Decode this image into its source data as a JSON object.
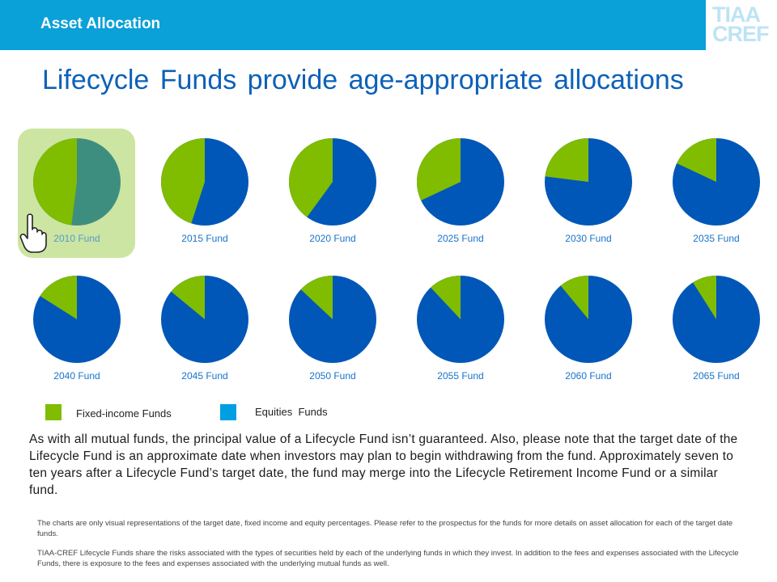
{
  "header": {
    "section_title": "Asset Allocation",
    "logo_lines": [
      "TIAA",
      "CREF"
    ],
    "bar_color": "#0aa0d8"
  },
  "page_title": "Lifecycle Funds provide age-appropriate allocations",
  "colors": {
    "fixed_income": "#80bc00",
    "equities": "#0057b8",
    "selected_equities": "#3e8e7f",
    "highlight": "#cde5a2"
  },
  "funds": [
    {
      "label": "2010 Fund",
      "fixed_income_pct": 48,
      "selected": true
    },
    {
      "label": "2015 Fund",
      "fixed_income_pct": 45,
      "selected": false
    },
    {
      "label": "2020 Fund",
      "fixed_income_pct": 40,
      "selected": false
    },
    {
      "label": "2025 Fund",
      "fixed_income_pct": 32,
      "selected": false
    },
    {
      "label": "2030 Fund",
      "fixed_income_pct": 23,
      "selected": false
    },
    {
      "label": "2035 Fund",
      "fixed_income_pct": 18,
      "selected": false
    },
    {
      "label": "2040 Fund",
      "fixed_income_pct": 16,
      "selected": false
    },
    {
      "label": "2045 Fund",
      "fixed_income_pct": 14,
      "selected": false
    },
    {
      "label": "2050 Fund",
      "fixed_income_pct": 13,
      "selected": false
    },
    {
      "label": "2055 Fund",
      "fixed_income_pct": 12,
      "selected": false
    },
    {
      "label": "2060 Fund",
      "fixed_income_pct": 11,
      "selected": false
    },
    {
      "label": "2065 Fund",
      "fixed_income_pct": 9,
      "selected": false
    }
  ],
  "legend": {
    "fixed_income_label": "Fixed-income Funds",
    "equities_label": "Equities  Funds",
    "fixed_income_swatch": "#80bc00",
    "equities_swatch": "#009fe3"
  },
  "body_text": "As with all mutual funds, the principal value of a Lifecycle Fund isn’t guaranteed.  Also, please note that the target date of the Lifecycle Fund is an approximate date when investors may plan to begin withdrawing from the fund. Approximately seven to ten years after a Lifecycle Fund’s target date, the fund may merge into the Lifecycle Retirement Income Fund or a similar fund.",
  "footnotes": [
    "The charts are only visual representations of the target date, fixed income and equity percentages. Please refer to the prospectus for the funds for more details on asset allocation for each of the target date funds.",
    "TIAA-CREF Lifecycle Funds share the risks associated with the types of securities held by each of the underlying funds in which they invest. In addition to the fees and expenses associated with the Lifecycle Funds, there is exposure to the fees and expenses associated with the underlying mutual funds as well."
  ]
}
